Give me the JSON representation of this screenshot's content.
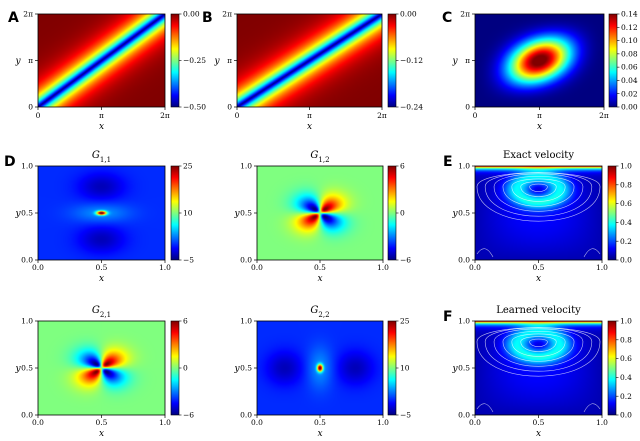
{
  "chart_data": [
    {
      "panel": "A",
      "type": "heatmap",
      "colormap": "jet",
      "title": "",
      "xlabel": "x",
      "ylabel": "y",
      "xticks": [
        "0",
        "π",
        "2π"
      ],
      "yticks": [
        "0",
        "π",
        "2π"
      ],
      "xlim": [
        0,
        6.283
      ],
      "ylim": [
        0,
        6.283
      ],
      "colorbar": {
        "min": -0.5,
        "max": 0.0,
        "ticks": [
          "0.00",
          "−0.25",
          "−0.50"
        ]
      },
      "field": "diagonal valley: minimum (−0.50) along x = y, rising to 0.00 away from the diagonal"
    },
    {
      "panel": "B",
      "type": "heatmap",
      "colormap": "jet",
      "title": "",
      "xlabel": "x",
      "ylabel": "y",
      "xticks": [
        "0",
        "π",
        "2π"
      ],
      "yticks": [
        "0",
        "π",
        "2π"
      ],
      "xlim": [
        0,
        6.283
      ],
      "ylim": [
        0,
        6.283
      ],
      "colorbar": {
        "min": -0.24,
        "max": 0.0,
        "ticks": [
          "0.00",
          "−0.12",
          "−0.24"
        ]
      },
      "field": "diagonal valley: minimum (−0.24) along x = y, rising to 0.00 away from the diagonal"
    },
    {
      "panel": "C",
      "type": "heatmap",
      "colormap": "jet",
      "title": "",
      "xlabel": "x",
      "ylabel": "y",
      "xticks": [
        "0",
        "π",
        "2π"
      ],
      "yticks": [
        "0",
        "π",
        "2π"
      ],
      "xlim": [
        0,
        6.283
      ],
      "ylim": [
        0,
        6.283
      ],
      "colorbar": {
        "min": 0.0,
        "max": 0.14,
        "ticks": [
          "0.14",
          "0.12",
          "0.10",
          "0.08",
          "0.06",
          "0.04",
          "0.02",
          "0.00"
        ]
      },
      "field": "elliptical peak (0.14) at center (π, π), tilted along the diagonal, decaying to 0.00 at the boundary"
    },
    {
      "panel": "D",
      "type": "heatmap",
      "colormap": "jet",
      "title": "G_{1,1}",
      "xlabel": "x",
      "ylabel": "y",
      "xticks": [
        "0.0",
        "0.5",
        "1.0"
      ],
      "yticks": [
        "0.0",
        "0.5",
        "1.0"
      ],
      "xlim": [
        0,
        1
      ],
      "ylim": [
        0,
        1
      ],
      "colorbar": {
        "min": -5,
        "max": 25,
        "ticks": [
          "25",
          "10",
          "−5"
        ]
      },
      "field": "sharp peak (25) at (0.5, 0.5), horizontally elongated; negative lobes above and below"
    },
    {
      "panel": "",
      "type": "heatmap",
      "colormap": "jet",
      "title": "G_{1,2}",
      "xlabel": "x",
      "ylabel": "y",
      "xticks": [
        "0.0",
        "0.5",
        "1.0"
      ],
      "yticks": [
        "0.0",
        "0.5",
        "1.0"
      ],
      "xlim": [
        0,
        1
      ],
      "ylim": [
        0,
        1
      ],
      "colorbar": {
        "min": -6,
        "max": 6,
        "ticks": [
          "6",
          "0",
          "−6"
        ]
      },
      "field": "quadrupole at (0.5, 0.5): positive lobes upper-right and lower-left, negative lobes upper-left and lower-right"
    },
    {
      "panel": "",
      "type": "heatmap",
      "colormap": "jet",
      "title": "G_{2,1}",
      "xlabel": "x",
      "ylabel": "y",
      "xticks": [
        "0.0",
        "0.5",
        "1.0"
      ],
      "yticks": [
        "0.0",
        "0.5",
        "1.0"
      ],
      "xlim": [
        0,
        1
      ],
      "ylim": [
        0,
        1
      ],
      "colorbar": {
        "min": -6,
        "max": 6,
        "ticks": [
          "6",
          "0",
          "−6"
        ]
      },
      "field": "quadrupole at (0.5, 0.5): positive lobes upper-right and lower-left, negative lobes upper-left and lower-right"
    },
    {
      "panel": "",
      "type": "heatmap",
      "colormap": "jet",
      "title": "G_{2,2}",
      "xlabel": "x",
      "ylabel": "y",
      "xticks": [
        "0.0",
        "0.5",
        "1.0"
      ],
      "yticks": [
        "0.0",
        "0.5",
        "1.0"
      ],
      "xlim": [
        0,
        1
      ],
      "ylim": [
        0,
        1
      ],
      "colorbar": {
        "min": -5,
        "max": 25,
        "ticks": [
          "25",
          "10",
          "−5"
        ]
      },
      "field": "sharp peak (25) at (0.5, 0.5), vertically elongated; negative lobes left and right"
    },
    {
      "panel": "E",
      "type": "heatmap",
      "colormap": "jet",
      "title": "Exact velocity",
      "xlabel": "x",
      "ylabel": "y",
      "xticks": [
        "0.0",
        "0.5",
        "1.0"
      ],
      "yticks": [
        "0.0",
        "0.5",
        "1.0"
      ],
      "xlim": [
        0,
        1
      ],
      "ylim": [
        0,
        1
      ],
      "colorbar": {
        "min": 0.0,
        "max": 1.0,
        "ticks": [
          "1.0",
          "0.8",
          "0.6",
          "0.4",
          "0.2",
          "0.0"
        ]
      },
      "field": "lid-driven cavity speed: maximum (1.0) along the top lid, low in the interior, with streamlines circulating around a primary vortex near (0.5, 0.75)"
    },
    {
      "panel": "F",
      "type": "heatmap",
      "colormap": "jet",
      "title": "Learned velocity",
      "xlabel": "x",
      "ylabel": "y",
      "xticks": [
        "0.0",
        "0.5",
        "1.0"
      ],
      "yticks": [
        "0.0",
        "0.5",
        "1.0"
      ],
      "xlim": [
        0,
        1
      ],
      "ylim": [
        0,
        1
      ],
      "colorbar": {
        "min": 0.0,
        "max": 1.0,
        "ticks": [
          "1.0",
          "0.8",
          "0.6",
          "0.4",
          "0.2",
          "0.0"
        ]
      },
      "field": "lid-driven cavity speed: maximum (1.0) along the top lid, low in the interior, with streamlines circulating around a primary vortex near (0.5, 0.75)"
    }
  ]
}
